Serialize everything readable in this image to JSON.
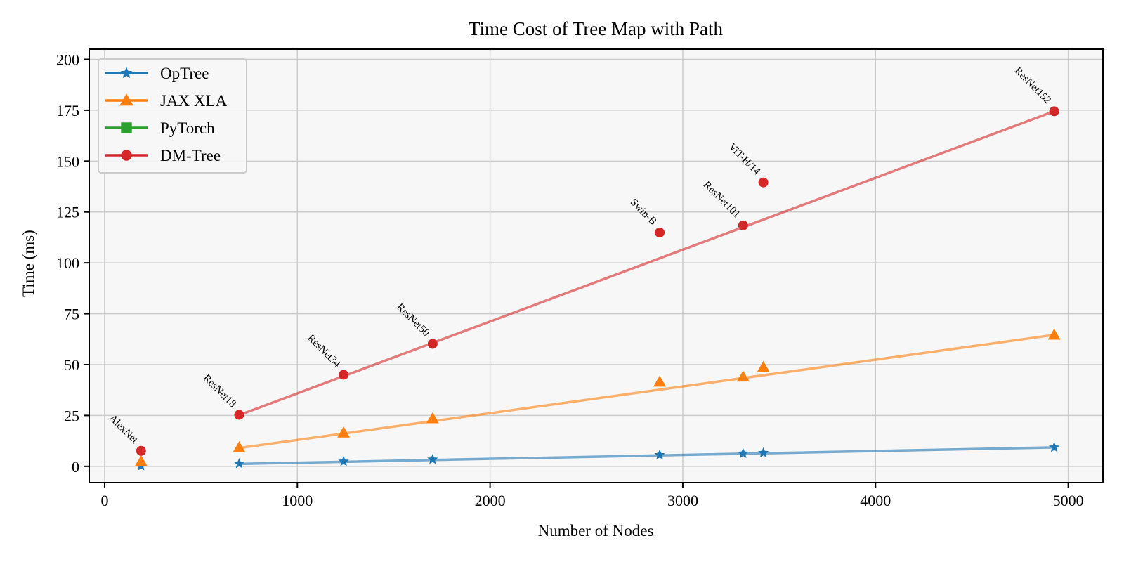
{
  "chart_data": {
    "type": "line",
    "title": "Time Cost of Tree Map with Path",
    "xlabel": "Number of Nodes",
    "ylabel": "Time (ms)",
    "xlim": [
      -80,
      5180
    ],
    "ylim": [
      -8,
      205
    ],
    "xticks": [
      0,
      1000,
      2000,
      3000,
      4000,
      5000
    ],
    "xtick_labels": [
      "0",
      "1000",
      "2000",
      "3000",
      "4000",
      "5000"
    ],
    "yticks": [
      0,
      25,
      50,
      75,
      100,
      125,
      150,
      175,
      200
    ],
    "ytick_labels": [
      "0",
      "25",
      "50",
      "75",
      "100",
      "125",
      "150",
      "175",
      "200"
    ],
    "grid": true,
    "legend_position": "top-left",
    "models": [
      {
        "name": "AlexNet",
        "x": 189
      },
      {
        "name": "ResNet18",
        "x": 698
      },
      {
        "name": "ResNet34",
        "x": 1240
      },
      {
        "name": "ResNet50",
        "x": 1702
      },
      {
        "name": "Swin-B",
        "x": 2880
      },
      {
        "name": "ResNet101",
        "x": 3313
      },
      {
        "name": "ViT-H/14",
        "x": 3418
      },
      {
        "name": "ResNet152",
        "x": 4927
      }
    ],
    "series": [
      {
        "name": "OpTree",
        "color": "#1f77b4",
        "marker": "star",
        "values": [
          0.2,
          1.3,
          2.4,
          3.4,
          5.6,
          6.3,
          6.6,
          9.3
        ],
        "fit_line": {
          "x": [
            698,
            4927
          ],
          "y": [
            1.2,
            9.3
          ]
        }
      },
      {
        "name": "JAX XLA",
        "color": "#ff7f0e",
        "marker": "triangle",
        "values": [
          2.4,
          9.2,
          16.5,
          23.5,
          41.5,
          44.0,
          48.7,
          64.6
        ],
        "fit_line": {
          "x": [
            698,
            4927
          ],
          "y": [
            9.0,
            64.6
          ]
        }
      },
      {
        "name": "PyTorch",
        "color": "#2ca02c",
        "marker": "square",
        "values": [],
        "fit_line": null
      },
      {
        "name": "DM-Tree",
        "color": "#d62728",
        "marker": "circle",
        "values": [
          7.6,
          25.3,
          45.0,
          60.2,
          114.9,
          118.4,
          139.5,
          174.5
        ],
        "fit_line": {
          "x": [
            698,
            4927
          ],
          "y": [
            25.2,
            174.5
          ]
        }
      }
    ],
    "label_series": "DM-Tree"
  }
}
